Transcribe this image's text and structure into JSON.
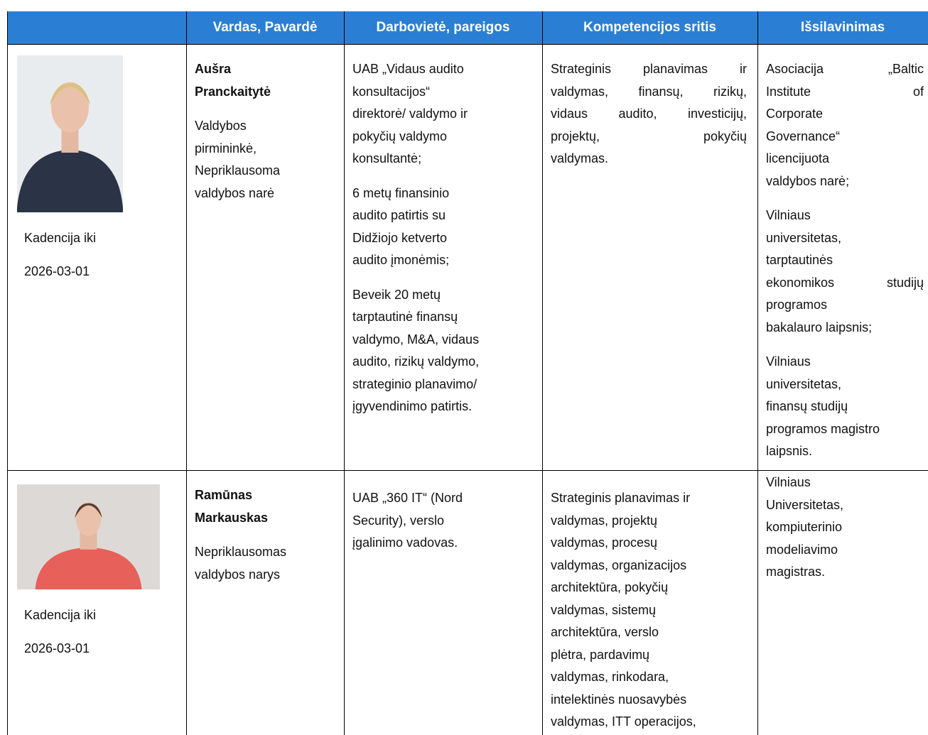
{
  "table": {
    "header": [
      "Vardas, Pavardė",
      "Darbovietė, pareigos",
      "Kompetencijos sritis",
      "Išsilavinimas"
    ],
    "rows": [
      {
        "term": [
          "Kadencija iki",
          "2026-03-01"
        ],
        "name": [
          "Aušra",
          "Pranckaitytė"
        ],
        "role": [
          "Valdybos",
          "pirmininkė,",
          "Nepriklausoma",
          "valdybos narė"
        ],
        "workplace": [
          [
            "UAB „Vidaus audito",
            "konsultacijos“",
            "direktorė/ valdymo ir",
            "pokyčių valdymo",
            "konsultantė;"
          ],
          [
            "6 metų finansinio",
            "audito patirtis su",
            "Didžiojo ketverto",
            "audito įmonėmis;"
          ],
          [
            "Beveik 20 metų",
            "tarptautinė finansų",
            "valdymo, M&A, vidaus",
            "audito, rizikų valdymo,",
            "strateginio planavimo/",
            "įgyvendinimo patirtis."
          ]
        ],
        "competence": [
          [
            "Strateginis planavimas ir",
            "valdymas, finansų, rizikų,",
            "vidaus audito, investicijų,",
            "projektų, pokyčių",
            "valdymas."
          ]
        ],
        "education": [
          [
            "Asociacija „Baltic",
            "Institute of",
            "Corporate",
            "Governance“",
            "licencijuota",
            "valdybos narė;"
          ],
          [
            "Vilniaus",
            "universitetas,",
            "tarptautinės",
            "ekonomikos studijų",
            "programos",
            "bakalauro laipsnis;"
          ],
          [
            "Vilniaus",
            "universitetas,",
            "finansų studijų",
            "programos magistro",
            "laipsnis."
          ]
        ]
      },
      {
        "term": [
          "Kadencija iki",
          "2026-03-01"
        ],
        "name": [
          "Ramūnas",
          "Markauskas"
        ],
        "role": [
          "Nepriklausomas",
          "valdybos narys"
        ],
        "workplace": [
          [
            "UAB „360 IT“ (Nord",
            "Security), verslo",
            "įgalinimo vadovas."
          ]
        ],
        "competence": [
          [
            "Strateginis planavimas ir",
            "valdymas, projektų",
            "valdymas, procesų",
            "valdymas, organizacijos",
            "architektūra, pokyčių",
            "valdymas, sistemų",
            "architektūra, verslo",
            "plėtra, pardavimų",
            "valdymas, rinkodara,",
            "intelektinės nuosavybės",
            "valdymas, ITT operacijos,"
          ]
        ],
        "education": [
          [
            "Vilniaus",
            "Universitetas,",
            "kompiuterinio",
            "modeliavimo",
            "magistras."
          ]
        ]
      }
    ]
  }
}
